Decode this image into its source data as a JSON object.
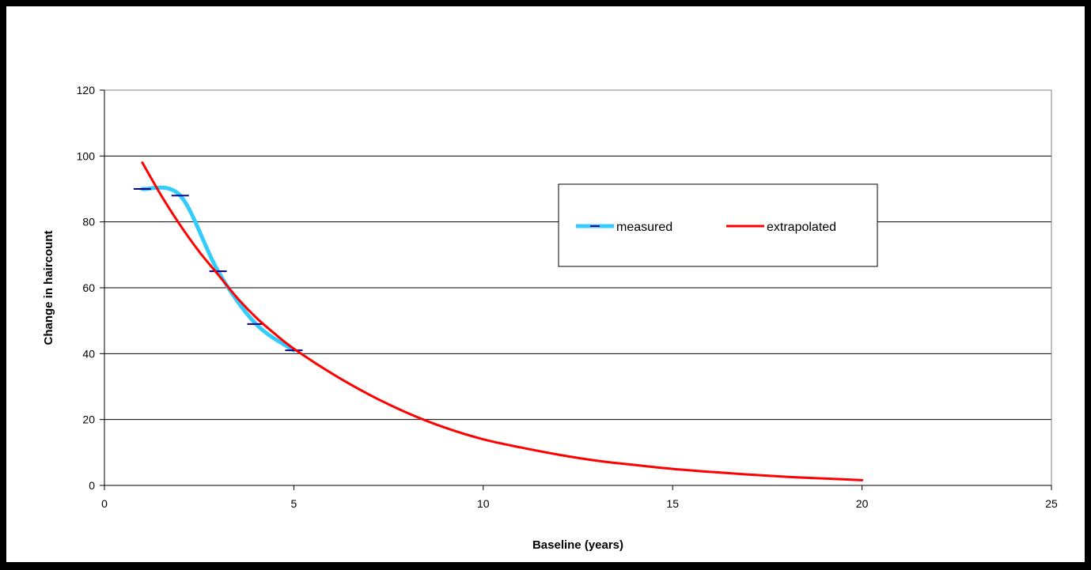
{
  "chart_data": {
    "type": "line",
    "title": "",
    "xlabel": "Baseline (years)",
    "ylabel": "Change in haircount",
    "xlim": [
      0,
      25
    ],
    "ylim": [
      0,
      120
    ],
    "x_ticks": [
      0,
      5,
      10,
      15,
      20,
      25
    ],
    "y_ticks": [
      0,
      20,
      40,
      60,
      80,
      100,
      120
    ],
    "grid": "horizontal",
    "legend_position": "center-right",
    "series": [
      {
        "name": "measured",
        "color": "#33ccff",
        "marker": "dash",
        "marker_color": "#000080",
        "x": [
          1,
          2,
          3,
          4,
          5
        ],
        "y": [
          90,
          88,
          65,
          49,
          41
        ]
      },
      {
        "name": "extrapolated",
        "color": "#ff0000",
        "marker": "none",
        "x": [
          1,
          1.5,
          2,
          2.5,
          3,
          3.5,
          4,
          4.5,
          5,
          6,
          7,
          8,
          9,
          10,
          11,
          12,
          13,
          14,
          15,
          16,
          17,
          18,
          19,
          20
        ],
        "y": [
          98,
          88,
          79,
          71,
          64,
          57,
          51,
          46,
          41.5,
          34,
          27.5,
          22,
          17.5,
          14,
          11.5,
          9.3,
          7.5,
          6.2,
          5,
          4.1,
          3.3,
          2.6,
          2.1,
          1.6
        ]
      }
    ]
  }
}
